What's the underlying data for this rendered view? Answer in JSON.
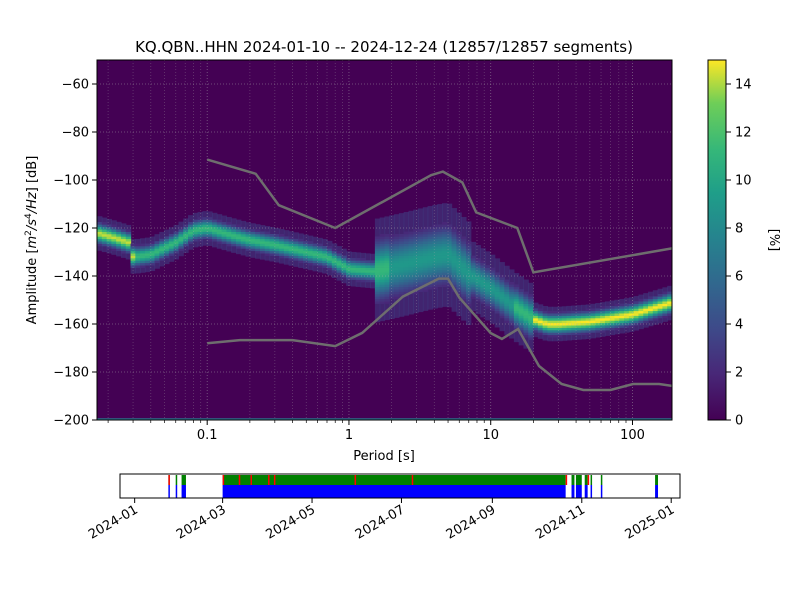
{
  "chart_data": [
    {
      "type": "heatmap",
      "title": "KQ.QBN..HHN   2024-01-10 -- 2024-12-24  (12857/12857 segments)",
      "xlabel": "Period [s]",
      "ylabel": "Amplitude [m²/s⁴/Hz] [dB]",
      "ylabel_parts": {
        "prefix": "Amplitude [",
        "m": "m",
        "two": "2",
        "slash_s": "/s",
        "four": "4",
        "slash_hz": "/Hz",
        "suffix": "] [dB]"
      },
      "x_scale": "log",
      "xlim": [
        0.0167,
        190
      ],
      "ylim": [
        -200,
        -50
      ],
      "x_ticks": [
        0.1,
        1,
        10,
        100
      ],
      "x_tick_labels": [
        "0.1",
        "1",
        "10",
        "100"
      ],
      "y_ticks": [
        -60,
        -80,
        -100,
        -120,
        -140,
        -160,
        -180,
        -200
      ],
      "y_tick_labels": [
        "−60",
        "−80",
        "−100",
        "−120",
        "−140",
        "−160",
        "−180",
        "−200"
      ],
      "grid": true,
      "colormap": "viridis",
      "background_color": "#440154",
      "mode_curve": {
        "period": [
          0.0167,
          0.022,
          0.028,
          0.03,
          0.04,
          0.06,
          0.08,
          0.1,
          0.15,
          0.2,
          0.3,
          0.5,
          0.7,
          1.0,
          1.5,
          2.5,
          4.0,
          5.0,
          7.0,
          10,
          15,
          20,
          25,
          30,
          50,
          100,
          190
        ],
        "db": [
          -122,
          -124,
          -126,
          -132,
          -131,
          -126,
          -121,
          -120,
          -123,
          -125,
          -127,
          -130,
          -132,
          -137,
          -138,
          -135,
          -132,
          -131,
          -139,
          -145,
          -153,
          -158,
          -160,
          -160,
          -159,
          -156,
          -151
        ]
      },
      "nhnm": {
        "period": [
          0.1,
          0.22,
          0.32,
          0.8,
          3.8,
          4.6,
          6.3,
          7.9,
          15.4,
          20,
          190
        ],
        "db": [
          -91.5,
          -97.4,
          -110.5,
          -120,
          -98,
          -96.5,
          -101,
          -113.5,
          -120,
          -138.5,
          -128.5
        ]
      },
      "nlnm": {
        "period": [
          0.1,
          0.17,
          0.4,
          0.8,
          1.24,
          2.4,
          4.3,
          5.0,
          6.0,
          10,
          12,
          15.6,
          21.9,
          31.6,
          45,
          70,
          101,
          154,
          190
        ],
        "db": [
          -168,
          -166.7,
          -166.7,
          -169.2,
          -163.7,
          -148.6,
          -141.1,
          -141.1,
          -149,
          -163.8,
          -166.2,
          -162.1,
          -177.5,
          -185,
          -187.5,
          -187.5,
          -185,
          -185,
          -185.8
        ]
      }
    },
    {
      "type": "colorbar",
      "label": "[%]",
      "ticks": [
        0,
        2,
        4,
        6,
        8,
        10,
        12,
        14
      ],
      "tick_labels": [
        "0",
        "2",
        "4",
        "6",
        "8",
        "10",
        "12",
        "14"
      ],
      "range": [
        0,
        15
      ],
      "colormap": "viridis"
    },
    {
      "type": "timeline",
      "x_tick_labels": [
        "2024-01",
        "2024-03",
        "2024-05",
        "2024-07",
        "2024-09",
        "2024-11",
        "2025-01"
      ],
      "x_ticks": [
        "2024-01-01",
        "2024-03-01",
        "2024-05-01",
        "2024-07-01",
        "2024-09-01",
        "2024-11-01",
        "2025-01-01"
      ],
      "x_range": [
        "2023-12-22",
        "2025-01-07"
      ],
      "colors": {
        "coverage": "#0000ff",
        "data": "#008000",
        "gap": "#ff0000"
      },
      "segments": [
        {
          "start": "2024-01-24",
          "end": "2024-01-25",
          "kind": "coverage"
        },
        {
          "start": "2024-01-29",
          "end": "2024-01-30",
          "kind": "coverage"
        },
        {
          "start": "2024-02-02",
          "end": "2024-02-05",
          "kind": "coverage"
        },
        {
          "start": "2024-03-01",
          "end": "2024-10-21",
          "kind": "coverage"
        },
        {
          "start": "2024-10-25",
          "end": "2024-10-27",
          "kind": "coverage"
        },
        {
          "start": "2024-10-28",
          "end": "2024-11-01",
          "kind": "coverage"
        },
        {
          "start": "2024-11-03",
          "end": "2024-11-05",
          "kind": "coverage"
        },
        {
          "start": "2024-11-07",
          "end": "2024-11-08",
          "kind": "coverage"
        },
        {
          "start": "2024-11-14",
          "end": "2024-11-15",
          "kind": "coverage"
        },
        {
          "start": "2024-12-21",
          "end": "2024-12-23",
          "kind": "coverage"
        }
      ],
      "gaps": [
        "2024-01-24",
        "2024-03-01",
        "2024-03-12",
        "2024-03-20",
        "2024-04-01",
        "2024-04-05",
        "2024-05-30",
        "2024-07-08",
        "2024-10-21",
        "2024-11-05"
      ]
    }
  ]
}
